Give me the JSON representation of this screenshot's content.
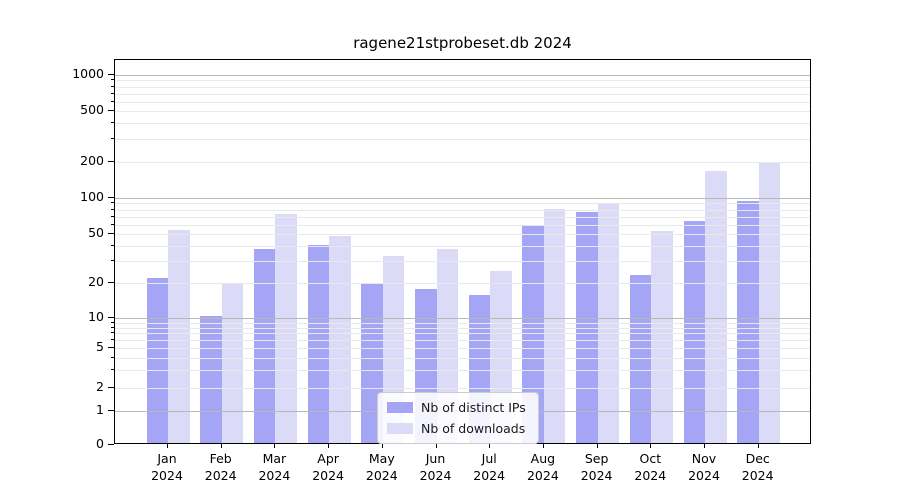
{
  "chart_data": {
    "type": "bar",
    "title": "ragene21stprobeset.db 2024",
    "x": {
      "months": [
        "Jan",
        "Feb",
        "Mar",
        "Apr",
        "May",
        "Jun",
        "Jul",
        "Aug",
        "Sep",
        "Oct",
        "Nov",
        "Dec"
      ],
      "year": "2024"
    },
    "series": [
      {
        "name": "Nb of distinct IPs",
        "color": "#a5a5f5",
        "values": [
          21,
          10,
          36,
          39,
          19,
          17,
          15,
          56,
          74,
          22,
          62,
          90
        ]
      },
      {
        "name": "Nb of downloads",
        "color": "#dbdbf8",
        "values": [
          52,
          19,
          71,
          46,
          32,
          36,
          24,
          78,
          86,
          51,
          162,
          193
        ]
      }
    ],
    "yscale": "symlog",
    "ylim": [
      0,
      1300
    ],
    "yticks_labeled": [
      0,
      1,
      2,
      5,
      10,
      20,
      50,
      100,
      200,
      500,
      1000
    ],
    "yticks_minor": [
      3,
      4,
      6,
      7,
      8,
      9,
      30,
      40,
      60,
      70,
      80,
      90,
      300,
      400,
      600,
      700,
      800,
      900
    ],
    "grid": true,
    "grid_major_color": "#b8b8b8",
    "grid_minor_color": "#e9e9e9",
    "legend_position": "lower center"
  }
}
